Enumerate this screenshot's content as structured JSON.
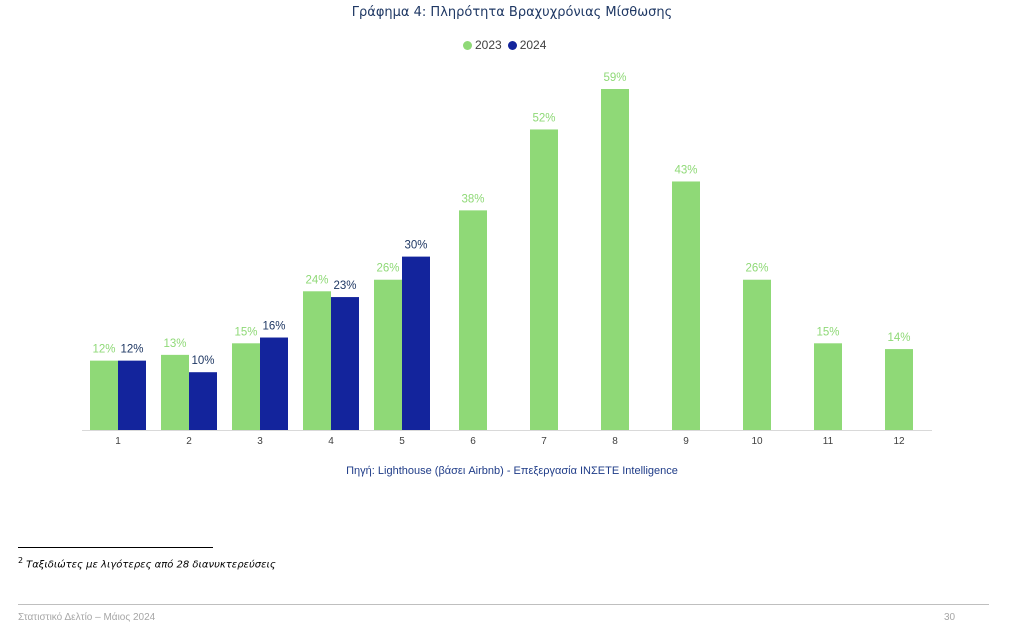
{
  "colors": {
    "series_2023": "#8fd977",
    "series_2024": "#13249c",
    "title": "#1f3864",
    "source": "#1f3c88"
  },
  "chart_data": {
    "type": "bar",
    "title": "Γράφημα 4: Πληρότητα Βραχυχρόνιας Μίσθωσης",
    "categories": [
      "1",
      "2",
      "3",
      "4",
      "5",
      "6",
      "7",
      "8",
      "9",
      "10",
      "11",
      "12"
    ],
    "series": [
      {
        "name": "2023",
        "values": [
          12,
          13,
          15,
          24,
          26,
          38,
          52,
          59,
          43,
          26,
          15,
          14
        ],
        "labels": [
          "12%",
          "13%",
          "15%",
          "24%",
          "26%",
          "38%",
          "52%",
          "59%",
          "43%",
          "26%",
          "15%",
          "14%"
        ]
      },
      {
        "name": "2024",
        "values": [
          12,
          10,
          16,
          23,
          30,
          null,
          null,
          null,
          null,
          null,
          null,
          null
        ],
        "labels": [
          "12%",
          "10%",
          "16%",
          "23%",
          "30%",
          "",
          "",
          "",
          "",
          "",
          "",
          ""
        ]
      }
    ],
    "ylim": [
      0,
      59
    ],
    "xlabel": "",
    "ylabel": "",
    "grid": false,
    "legend_position": "top-center"
  },
  "source_note": "Πηγή: Lighthouse (βάσει Airbnb) - Επεξεργασία INΣΕΤΕ Intelligence",
  "footnote": {
    "marker": "2",
    "text": "Ταξιδιώτες με λιγότερες από 28 διανυκτερεύσεις"
  },
  "footer": {
    "left": "Στατιστικό Δελτίο – Μάιος 2024",
    "right": "30"
  }
}
